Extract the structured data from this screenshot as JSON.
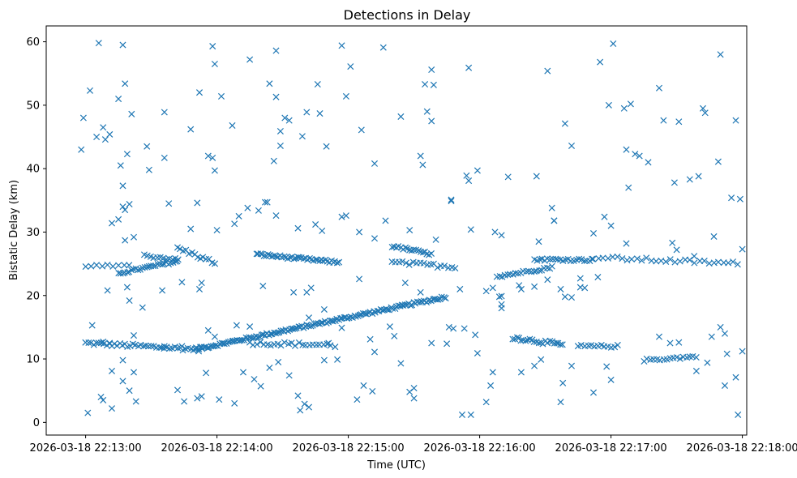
{
  "chart_data": {
    "type": "scatter",
    "title": "Detections in Delay",
    "xlabel": "Time (UTC)",
    "ylabel": "Bistatic Delay (km)",
    "marker": "x",
    "color": "#1f77b4",
    "xlim_seconds": [
      -18,
      302
    ],
    "ylim": [
      -2,
      62.5
    ],
    "x_ticks": [
      {
        "t": 0,
        "label": "2026-03-18 22:13:00"
      },
      {
        "t": 60,
        "label": "2026-03-18 22:14:00"
      },
      {
        "t": 120,
        "label": "2026-03-18 22:15:00"
      },
      {
        "t": 180,
        "label": "2026-03-18 22:16:00"
      },
      {
        "t": 240,
        "label": "2026-03-18 22:17:00"
      },
      {
        "t": 300,
        "label": "2026-03-18 22:18:00"
      }
    ],
    "y_ticks": [
      {
        "v": 0,
        "label": "0"
      },
      {
        "v": 10,
        "label": "10"
      },
      {
        "v": 20,
        "label": "20"
      },
      {
        "v": 30,
        "label": "30"
      },
      {
        "v": 40,
        "label": "40"
      },
      {
        "v": 50,
        "label": "50"
      },
      {
        "v": 60,
        "label": "60"
      }
    ],
    "tracks": [
      {
        "name": "track-lower-flat-1",
        "t_start": 0,
        "t_end": 52,
        "y_start": 12.5,
        "y_end": 11.5,
        "step": 1.2,
        "jitter": 0.3
      },
      {
        "name": "track-rising-main",
        "t_start": 50,
        "t_end": 165,
        "y_start": 11.5,
        "y_end": 19.8,
        "step": 0.8,
        "jitter": 0.2
      },
      {
        "name": "track-lower-flat-2",
        "t_start": 75,
        "t_end": 112,
        "y_start": 12.5,
        "y_end": 12.2,
        "step": 1.6,
        "jitter": 0.3
      },
      {
        "name": "track-upper-flat-1",
        "t_start": 0,
        "t_end": 20,
        "y_start": 24.7,
        "y_end": 24.6,
        "step": 2.5,
        "jitter": 0.2
      },
      {
        "name": "track-upper-rising",
        "t_start": 15,
        "t_end": 42,
        "y_start": 23.5,
        "y_end": 25.4,
        "step": 1.0,
        "jitter": 0.2
      },
      {
        "name": "track-upper-short",
        "t_start": 27,
        "t_end": 43,
        "y_start": 26.3,
        "y_end": 25.6,
        "step": 1.4,
        "jitter": 0.2
      },
      {
        "name": "track-upper-mid",
        "t_start": 42,
        "t_end": 60,
        "y_start": 27.5,
        "y_end": 25.0,
        "step": 1.3,
        "jitter": 0.3
      },
      {
        "name": "track-upper-falling",
        "t_start": 78,
        "t_end": 116,
        "y_start": 26.5,
        "y_end": 25.2,
        "step": 0.9,
        "jitter": 0.2
      },
      {
        "name": "track-upper-falling-2",
        "t_start": 140,
        "t_end": 158,
        "y_start": 27.8,
        "y_end": 26.5,
        "step": 1.0,
        "jitter": 0.2
      },
      {
        "name": "track-upper-flat-2",
        "t_start": 140,
        "t_end": 170,
        "y_start": 25.2,
        "y_end": 24.5,
        "step": 1.6,
        "jitter": 0.3
      },
      {
        "name": "track-upper-rising-2",
        "t_start": 188,
        "t_end": 214,
        "y_start": 23.0,
        "y_end": 24.5,
        "step": 1.2,
        "jitter": 0.2
      },
      {
        "name": "track-upper-flat-3",
        "t_start": 205,
        "t_end": 232,
        "y_start": 25.7,
        "y_end": 25.6,
        "step": 1.2,
        "jitter": 0.2
      },
      {
        "name": "track-upper-flat-4",
        "t_start": 232,
        "t_end": 300,
        "y_start": 26.0,
        "y_end": 25.0,
        "step": 2.2,
        "jitter": 0.3
      },
      {
        "name": "track-mid-flat-1",
        "t_start": 195,
        "t_end": 218,
        "y_start": 13.4,
        "y_end": 12.2,
        "step": 1.0,
        "jitter": 0.3
      },
      {
        "name": "track-mid-flat-2",
        "t_start": 225,
        "t_end": 244,
        "y_start": 12.0,
        "y_end": 12.0,
        "step": 1.5,
        "jitter": 0.2
      },
      {
        "name": "track-mid-flat-3",
        "t_start": 255,
        "t_end": 280,
        "y_start": 9.8,
        "y_end": 10.4,
        "step": 1.5,
        "jitter": 0.2
      }
    ],
    "scattered_points": [
      [
        -2,
        43
      ],
      [
        -1,
        48
      ],
      [
        2,
        52.3
      ],
      [
        6,
        59.8
      ],
      [
        17,
        59.5
      ],
      [
        5,
        45
      ],
      [
        9,
        44.6
      ],
      [
        11,
        45.4
      ],
      [
        18,
        53.4
      ],
      [
        15,
        51
      ],
      [
        8,
        46.5
      ],
      [
        21,
        48.6
      ],
      [
        16,
        40.5
      ],
      [
        19,
        42.3
      ],
      [
        17,
        37.3
      ],
      [
        17,
        34
      ],
      [
        18,
        33.5
      ],
      [
        22,
        29.2
      ],
      [
        18,
        28.7
      ],
      [
        28,
        43.5
      ],
      [
        29,
        39.8
      ],
      [
        36,
        41.7
      ],
      [
        36,
        48.9
      ],
      [
        48,
        46.2
      ],
      [
        52,
        52
      ],
      [
        58,
        59.3
      ],
      [
        59,
        56.5
      ],
      [
        56,
        42
      ],
      [
        58,
        41.7
      ],
      [
        59,
        39.7
      ],
      [
        62,
        51.4
      ],
      [
        67,
        46.8
      ],
      [
        75,
        57.2
      ],
      [
        84,
        53.4
      ],
      [
        87,
        58.6
      ],
      [
        87,
        51.3
      ],
      [
        89,
        45.9
      ],
      [
        91,
        48
      ],
      [
        93,
        47.6
      ],
      [
        86,
        41.2
      ],
      [
        89,
        43.6
      ],
      [
        99,
        45.1
      ],
      [
        101,
        48.9
      ],
      [
        106,
        53.3
      ],
      [
        107,
        48.7
      ],
      [
        110,
        43.5
      ],
      [
        117,
        59.4
      ],
      [
        119,
        51.4
      ],
      [
        121,
        56.1
      ],
      [
        126,
        46.1
      ],
      [
        132,
        40.8
      ],
      [
        136,
        59.1
      ],
      [
        144,
        48.2
      ],
      [
        155,
        53.3
      ],
      [
        158,
        55.6
      ],
      [
        159,
        53.2
      ],
      [
        156,
        49
      ],
      [
        158,
        47.5
      ],
      [
        153,
        42
      ],
      [
        154,
        40.6
      ],
      [
        167,
        35.1
      ],
      [
        175,
        55.9
      ],
      [
        174,
        38.9
      ],
      [
        175,
        38.1
      ],
      [
        179,
        39.7
      ],
      [
        193,
        38.7
      ],
      [
        206,
        38.8
      ],
      [
        211,
        55.4
      ],
      [
        214,
        31.8
      ],
      [
        219,
        47.1
      ],
      [
        222,
        43.6
      ],
      [
        235,
        56.8
      ],
      [
        239,
        50
      ],
      [
        241,
        59.7
      ],
      [
        246,
        49.5
      ],
      [
        249,
        50.2
      ],
      [
        251,
        42.3
      ],
      [
        253,
        42
      ],
      [
        257,
        41
      ],
      [
        262,
        52.7
      ],
      [
        264,
        47.6
      ],
      [
        269,
        37.8
      ],
      [
        271,
        47.4
      ],
      [
        276,
        38.3
      ],
      [
        280,
        38.8
      ],
      [
        282,
        49.5
      ],
      [
        283,
        48.8
      ],
      [
        289,
        41.1
      ],
      [
        290,
        58
      ],
      [
        295,
        35.4
      ],
      [
        297,
        47.6
      ],
      [
        299,
        35.2
      ],
      [
        247,
        43
      ],
      [
        248,
        37
      ],
      [
        1,
        1.5
      ],
      [
        7,
        4
      ],
      [
        8,
        3.5
      ],
      [
        12,
        2.2
      ],
      [
        17,
        6.5
      ],
      [
        20,
        5
      ],
      [
        23,
        3.3
      ],
      [
        12,
        8.1
      ],
      [
        17,
        9.8
      ],
      [
        22,
        7.9
      ],
      [
        42,
        5.1
      ],
      [
        45,
        3.3
      ],
      [
        51,
        3.8
      ],
      [
        53,
        4.1
      ],
      [
        55,
        7.8
      ],
      [
        61,
        3.6
      ],
      [
        68,
        3
      ],
      [
        72,
        7.9
      ],
      [
        77,
        6.8
      ],
      [
        80,
        5.7
      ],
      [
        84,
        8.6
      ],
      [
        88,
        9.5
      ],
      [
        93,
        7.4
      ],
      [
        97,
        4.2
      ],
      [
        98,
        1.9
      ],
      [
        100,
        2.9
      ],
      [
        102,
        2.4
      ],
      [
        109,
        9.8
      ],
      [
        115,
        9.9
      ],
      [
        124,
        3.6
      ],
      [
        127,
        5.8
      ],
      [
        131,
        4.9
      ],
      [
        144,
        9.3
      ],
      [
        148,
        4.8
      ],
      [
        150,
        3.8
      ],
      [
        150,
        5.4
      ],
      [
        172,
        1.2
      ],
      [
        176,
        1.2
      ],
      [
        183,
        3.2
      ],
      [
        185,
        5.8
      ],
      [
        186,
        7.9
      ],
      [
        199,
        7.9
      ],
      [
        205,
        8.9
      ],
      [
        208,
        9.9
      ],
      [
        217,
        3.2
      ],
      [
        218,
        6.2
      ],
      [
        222,
        8.9
      ],
      [
        232,
        4.7
      ],
      [
        238,
        8.8
      ],
      [
        240,
        6.7
      ],
      [
        284,
        9.4
      ],
      [
        292,
        5.8
      ],
      [
        293,
        10.8
      ],
      [
        297,
        7.1
      ],
      [
        298,
        1.2
      ],
      [
        279,
        8.1
      ],
      [
        3,
        15.3
      ],
      [
        8,
        12.7
      ],
      [
        11,
        12.4
      ],
      [
        22,
        13.7
      ],
      [
        36,
        12
      ],
      [
        44,
        12
      ],
      [
        53,
        11.9
      ],
      [
        56,
        14.5
      ],
      [
        59,
        13.5
      ],
      [
        69,
        15.3
      ],
      [
        75,
        15.1
      ],
      [
        102,
        16.5
      ],
      [
        109,
        17.8
      ],
      [
        111,
        12.5
      ],
      [
        114,
        11.9
      ],
      [
        117,
        14.9
      ],
      [
        130,
        13.1
      ],
      [
        132,
        11.1
      ],
      [
        139,
        15.1
      ],
      [
        141,
        13.6
      ],
      [
        158,
        12.5
      ],
      [
        165,
        12.4
      ],
      [
        166,
        15
      ],
      [
        168,
        14.8
      ],
      [
        173,
        14.8
      ],
      [
        178,
        13.8
      ],
      [
        179,
        10.9
      ],
      [
        183,
        20.7
      ],
      [
        186,
        21.2
      ],
      [
        189,
        19.8
      ],
      [
        190,
        18
      ],
      [
        190,
        18.6
      ],
      [
        190,
        19.9
      ],
      [
        199,
        21
      ],
      [
        205,
        21.4
      ],
      [
        211,
        22.5
      ],
      [
        217,
        21
      ],
      [
        219,
        19.8
      ],
      [
        226,
        22.7
      ],
      [
        228,
        21.2
      ],
      [
        234,
        22.9
      ],
      [
        262,
        13.5
      ],
      [
        267,
        12.5
      ],
      [
        271,
        12.6
      ],
      [
        286,
        13.5
      ],
      [
        290,
        15
      ],
      [
        292,
        14
      ],
      [
        300,
        11.2
      ],
      [
        12,
        31.4
      ],
      [
        15,
        32
      ],
      [
        20,
        34.4
      ],
      [
        38,
        34.5
      ],
      [
        48,
        30.5
      ],
      [
        51,
        34.6
      ],
      [
        60,
        30.3
      ],
      [
        68,
        31.3
      ],
      [
        70,
        32.5
      ],
      [
        74,
        33.8
      ],
      [
        79,
        33.4
      ],
      [
        82,
        34.7
      ],
      [
        83,
        34.7
      ],
      [
        87,
        32.6
      ],
      [
        97,
        30.6
      ],
      [
        105,
        31.2
      ],
      [
        108,
        30.2
      ],
      [
        117,
        32.4
      ],
      [
        119,
        32.6
      ],
      [
        125,
        30
      ],
      [
        132,
        29
      ],
      [
        137,
        31.8
      ],
      [
        148,
        30.3
      ],
      [
        160,
        28.8
      ],
      [
        167,
        34.9
      ],
      [
        176,
        30.4
      ],
      [
        187,
        30
      ],
      [
        190,
        29.5
      ],
      [
        207,
        28.5
      ],
      [
        213,
        33.8
      ],
      [
        214,
        31.8
      ],
      [
        232,
        29.8
      ],
      [
        237,
        32.4
      ],
      [
        240,
        31
      ],
      [
        247,
        28.2
      ],
      [
        270,
        27.2
      ],
      [
        278,
        26.2
      ],
      [
        287,
        29.3
      ],
      [
        300,
        27.3
      ],
      [
        268,
        28.3
      ],
      [
        10,
        20.8
      ],
      [
        19,
        21.3
      ],
      [
        20,
        19.2
      ],
      [
        26,
        18.1
      ],
      [
        35,
        20.8
      ],
      [
        44,
        22.1
      ],
      [
        52,
        21
      ],
      [
        53,
        22
      ],
      [
        81,
        21.5
      ],
      [
        95,
        20.5
      ],
      [
        101,
        20.5
      ],
      [
        103,
        21.2
      ],
      [
        125,
        22.6
      ],
      [
        146,
        22
      ],
      [
        153,
        20.5
      ],
      [
        171,
        21
      ],
      [
        198,
        21.6
      ],
      [
        222,
        19.7
      ],
      [
        226,
        21.3
      ]
    ]
  }
}
